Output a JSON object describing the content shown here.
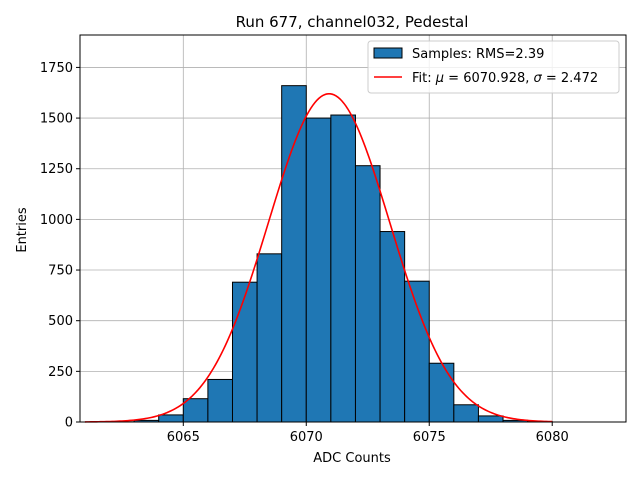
{
  "chart_data": {
    "type": "bar",
    "title": "Run 677, channel032, Pedestal",
    "xlabel": "ADC Counts",
    "ylabel": "Entries",
    "xlim": [
      6060.8,
      6083
    ],
    "ylim": [
      0,
      1910
    ],
    "grid": true,
    "legend_placement": "top-right",
    "x_ticks": [
      6065,
      6070,
      6075,
      6080
    ],
    "x_tick_labels": [
      "6065",
      "6070",
      "6075",
      "6080"
    ],
    "y_ticks": [
      0,
      250,
      500,
      750,
      1000,
      1250,
      1500,
      1750
    ],
    "y_tick_labels": [
      "0",
      "250",
      "500",
      "750",
      "1000",
      "1250",
      "1500",
      "1750"
    ],
    "histogram": {
      "name": "Samples: RMS=2.39",
      "bin_width": 1,
      "bin_left_edges": [
        6062,
        6063,
        6064,
        6065,
        6066,
        6067,
        6068,
        6069,
        6070,
        6071,
        6072,
        6073,
        6074,
        6075,
        6076,
        6077,
        6078,
        6079
      ],
      "values": [
        1,
        8,
        35,
        115,
        210,
        690,
        830,
        1660,
        1500,
        1515,
        1265,
        940,
        695,
        290,
        85,
        30,
        8,
        2
      ],
      "color": "#1f77b4",
      "edge_color": "#000000"
    },
    "fit": {
      "name": "Fit: $\\mu$ = 6070.928, $\\sigma$ = 2.472",
      "legend_label_parts": [
        "Fit: ",
        "μ",
        " = 6070.928, ",
        "σ",
        " = 2.472"
      ],
      "mu": 6070.928,
      "sigma": 2.472,
      "peak": 1620,
      "x_range": [
        6061,
        6080
      ],
      "color": "#ff0000"
    }
  }
}
